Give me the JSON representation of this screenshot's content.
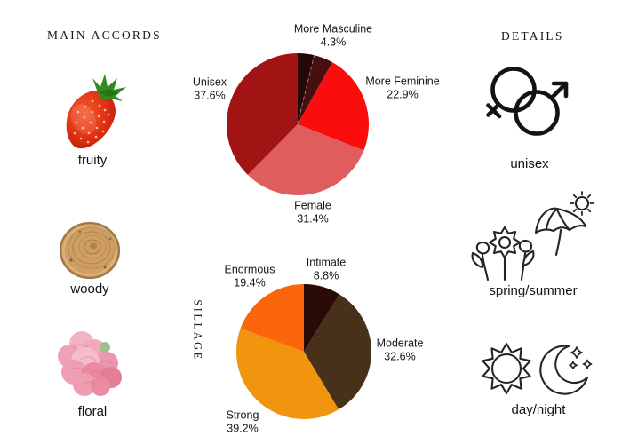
{
  "headers": {
    "main_accords": "MAIN ACCORDS",
    "details": "DETAILS"
  },
  "accords": [
    {
      "label": "fruity",
      "icon": "strawberry-image"
    },
    {
      "label": "woody",
      "icon": "wood-slice-image"
    },
    {
      "label": "floral",
      "icon": "carnation-image"
    }
  ],
  "details": [
    {
      "label": "unisex",
      "icon": "gender-unisex-icon"
    },
    {
      "label": "spring/summer",
      "icon": "flowers-umbrella-sun-icon"
    },
    {
      "label": "day/night",
      "icon": "sun-moon-icon"
    }
  ],
  "chart_data": [
    {
      "type": "pie",
      "name": "gender-votes",
      "title": "",
      "center": [
        335,
        140
      ],
      "radius": 80,
      "start_angle_deg": 0,
      "direction": "clockwise",
      "slices": [
        {
          "label": "",
          "value": 3.8,
          "color": "#260808",
          "boundary_dashed": true
        },
        {
          "label": "More Masculine",
          "value": 4.3,
          "color": "#471010",
          "label_pos": [
            375,
            40
          ]
        },
        {
          "label": "More Feminine",
          "value": 22.9,
          "color": "#f90d0d",
          "label_pos": [
            453,
            99
          ]
        },
        {
          "label": "Female",
          "value": 31.4,
          "color": "#e05d5d",
          "label_pos": [
            352,
            239
          ]
        },
        {
          "label": "Unisex",
          "value": 37.6,
          "color": "#a21414",
          "label_pos": [
            236,
            100
          ]
        }
      ]
    },
    {
      "type": "pie",
      "name": "sillage-votes",
      "title": "SILLAGE",
      "center": [
        342,
        396
      ],
      "radius": 76,
      "start_angle_deg": 0,
      "direction": "clockwise",
      "slices": [
        {
          "label": "Intimate",
          "value": 8.8,
          "color": "#2b0b06",
          "label_pos": [
            367,
            303
          ]
        },
        {
          "label": "Moderate",
          "value": 32.6,
          "color": "#48311b",
          "label_pos": [
            450,
            394
          ]
        },
        {
          "label": "Strong",
          "value": 39.2,
          "color": "#f2950e",
          "label_pos": [
            273,
            475
          ]
        },
        {
          "label": "Enormous",
          "value": 19.4,
          "color": "#fb660c",
          "label_pos": [
            281,
            311
          ]
        }
      ]
    }
  ]
}
